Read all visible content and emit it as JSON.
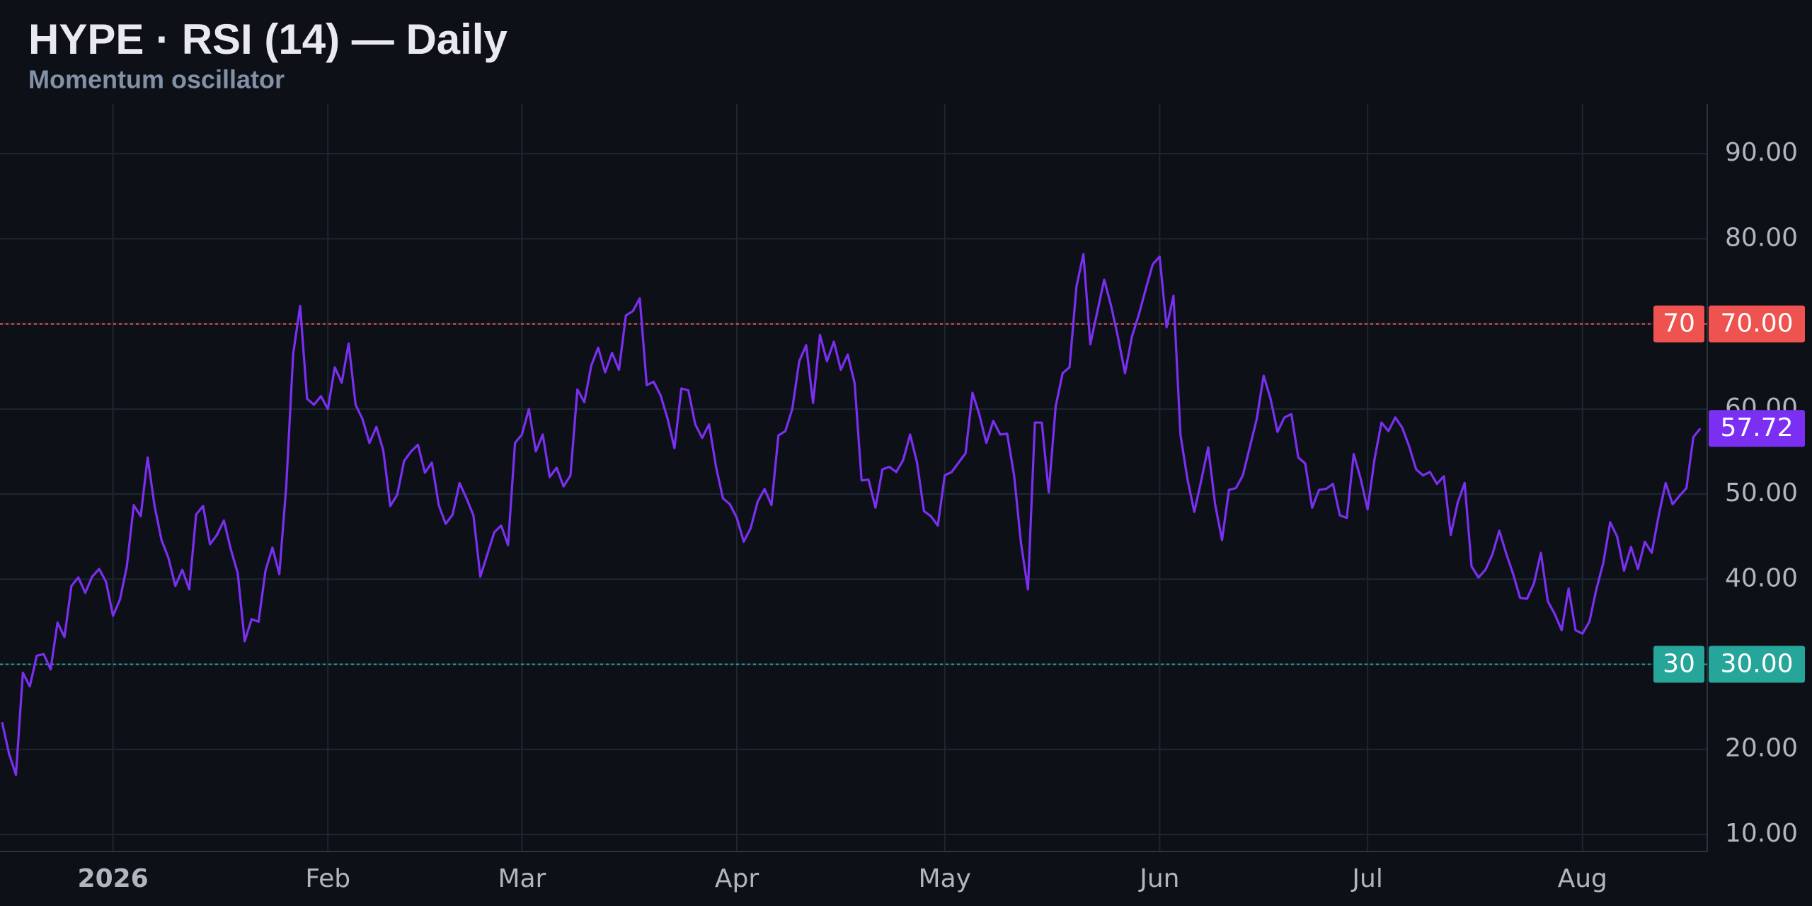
{
  "chart_data": {
    "type": "line",
    "title": "HYPE · RSI (14) — Daily",
    "subtitle": "Momentum oscillator",
    "series": [
      {
        "name": "RSI (14)",
        "color": "#7b2ff2",
        "values": [
          23.2,
          19.5,
          17,
          29,
          27.4,
          31,
          31.2,
          29.4,
          34.9,
          33.2,
          39.2,
          40.2,
          38.4,
          40.3,
          41.2,
          39.7,
          35.7,
          37.6,
          41.5,
          48.7,
          47.4,
          54.3,
          48.6,
          44.6,
          42.5,
          39.2,
          41.1,
          38.8,
          47.6,
          48.6,
          44.1,
          45.2,
          46.9,
          43.5,
          40.7,
          32.7,
          35.3,
          35,
          41,
          43.7,
          40.6,
          51,
          66.5,
          72.1,
          61.2,
          60.5,
          61.5,
          60,
          64.9,
          63.1,
          67.7,
          60.5,
          58.8,
          56,
          57.9,
          55.1,
          48.6,
          49.9,
          53.9,
          55,
          55.8,
          52.5,
          53.7,
          48.7,
          46.5,
          47.6,
          51.3,
          49.5,
          47.5,
          40.3,
          42.9,
          45.5,
          46.3,
          44,
          56,
          57,
          60,
          55,
          57,
          52,
          53.1,
          50.9,
          52.2,
          62.3,
          60.8,
          65.1,
          67.2,
          64.3,
          66.6,
          64.6,
          71,
          71.5,
          73,
          62.8,
          63.2,
          61.6,
          58.9,
          55.4,
          62.4,
          62.2,
          58.2,
          56.6,
          58.2,
          53.2,
          49.5,
          48.8,
          47.2,
          44.4,
          46,
          49.1,
          50.6,
          48.7,
          56.9,
          57.4,
          60,
          65.6,
          67.5,
          60.7,
          68.7,
          65.6,
          67.9,
          64.6,
          66.4,
          63,
          51.6,
          51.7,
          48.4,
          52.9,
          53.2,
          52.6,
          54,
          57,
          53.7,
          48,
          47.4,
          46.3,
          52.2,
          52.6,
          53.7,
          54.8,
          61.9,
          59.3,
          56,
          58.6,
          57,
          57.1,
          52.2,
          44.2,
          38.8,
          58.4,
          58.4,
          50.2,
          60.3,
          64.2,
          64.9,
          74.4,
          78.2,
          67.6,
          71.4,
          75.2,
          72.1,
          68.4,
          64.2,
          68.5,
          71.1,
          74.1,
          77,
          77.9,
          69.6,
          73.3,
          57,
          51.8,
          47.9,
          51.6,
          55.5,
          48.8,
          44.6,
          50.5,
          50.7,
          52.2,
          55.5,
          58.8,
          63.9,
          61.2,
          57.3,
          59,
          59.4,
          54.3,
          53.6,
          48.4,
          50.5,
          50.6,
          51.2,
          47.5,
          47.2,
          54.7,
          51.8,
          48.2,
          54.1,
          58.4,
          57.4,
          59,
          57.8,
          55.6,
          52.9,
          52.2,
          52.6,
          51.2,
          52.1,
          45.2,
          49,
          51.3,
          41.5,
          40.2,
          41.1,
          42.9,
          45.7,
          43,
          40.6,
          37.8,
          37.7,
          39.5,
          43.1,
          37.4,
          35.9,
          34,
          38.9,
          34,
          33.6,
          35,
          38.8,
          41.9,
          46.7,
          45,
          41,
          43.8,
          41.2,
          44.4,
          43.1,
          47.5,
          51.3,
          48.8,
          49.8,
          50.7,
          56.7,
          57.72
        ]
      }
    ],
    "xlim": [
      -0.3,
      246
    ],
    "xticks": [
      {
        "value": 16,
        "label": "2026"
      },
      {
        "value": 47,
        "label": "Feb"
      },
      {
        "value": 75,
        "label": "Mar"
      },
      {
        "value": 106,
        "label": "Apr"
      },
      {
        "value": 136,
        "label": "May"
      },
      {
        "value": 167,
        "label": "Jun"
      },
      {
        "value": 197,
        "label": "Jul"
      },
      {
        "value": 228,
        "label": "Aug"
      }
    ],
    "ylim": [
      8,
      96
    ],
    "yticks": [
      {
        "value": 10,
        "label": "10.00"
      },
      {
        "value": 20,
        "label": "20.00"
      },
      {
        "value": 30,
        "label": "30.00"
      },
      {
        "value": 40,
        "label": "40.00"
      },
      {
        "value": 50,
        "label": "50.00"
      },
      {
        "value": 60,
        "label": "60.00"
      },
      {
        "value": 70,
        "label": "70.00"
      },
      {
        "value": 80,
        "label": "80.00"
      },
      {
        "value": 90,
        "label": "90.00"
      }
    ],
    "hlines": [
      {
        "value": 70,
        "label": "70.00",
        "color": "#ef5350"
      },
      {
        "value": 30,
        "label": "30.00",
        "color": "#26a69a"
      }
    ],
    "grid": true
  }
}
